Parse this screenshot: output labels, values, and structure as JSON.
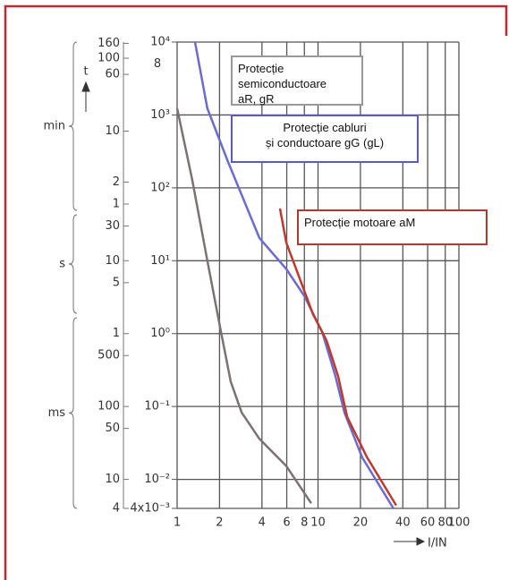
{
  "chart_data": {
    "type": "line",
    "log_x": true,
    "log_y": true,
    "grid": true,
    "x_label": "I/IN",
    "y_label": "t",
    "xlim": [
      1,
      100
    ],
    "xticks": [
      1,
      2,
      4,
      6,
      8,
      10,
      20,
      40,
      60,
      80,
      100
    ],
    "ylim": [
      0.004,
      10000
    ],
    "yticks": [
      {
        "value": 10000,
        "label": "10⁴"
      },
      {
        "value": 1000,
        "label": "10³"
      },
      {
        "value": 100,
        "label": "10²"
      },
      {
        "value": 10,
        "label": "10¹"
      },
      {
        "value": 1,
        "label": "10⁰"
      },
      {
        "value": 0.1,
        "label": "10⁻¹"
      },
      {
        "value": 0.01,
        "label": "10⁻²"
      },
      {
        "value": 0.004,
        "label": "4x10⁻³"
      }
    ],
    "time_ticks": [
      {
        "value": 9600,
        "label": "160"
      },
      {
        "value": 6000,
        "label": "100"
      },
      {
        "value": 3600,
        "label": "60"
      },
      {
        "value": 600,
        "label": "10"
      },
      {
        "value": 120,
        "label": "2"
      },
      {
        "value": 60,
        "label": "1"
      },
      {
        "value": 30,
        "label": "30"
      },
      {
        "value": 10,
        "label": "10"
      },
      {
        "value": 5,
        "label": "5"
      },
      {
        "value": 1,
        "label": "1"
      },
      {
        "value": 0.5,
        "label": "500"
      },
      {
        "value": 0.1,
        "label": "100"
      },
      {
        "value": 0.05,
        "label": "50"
      },
      {
        "value": 0.01,
        "label": "10"
      },
      {
        "value": 0.004,
        "label": "4"
      }
    ],
    "time_units": [
      "min",
      "s",
      "ms"
    ],
    "annotations": [
      {
        "value": 5000,
        "label": "8"
      }
    ],
    "series": [
      {
        "name": "Protecție semiconductoare\naR, gR",
        "color": "#7d7272",
        "x": [
          1,
          1.28,
          1.64,
          1.99,
          2.4,
          2.87,
          3.84,
          5.95,
          8.95
        ],
        "values": [
          1230,
          129,
          10,
          1.4,
          0.22,
          0.083,
          0.036,
          0.0153,
          0.0047
        ]
      },
      {
        "name": "Protecție cabluri\nși conductoare gG (gL)",
        "color": "#6b6bd0",
        "x": [
          1.34,
          1.64,
          2.3,
          3.84,
          5.95,
          7.98,
          10.7,
          13.3,
          15.4,
          20.6,
          34.3
        ],
        "values": [
          10000,
          1230,
          226,
          20.5,
          7.7,
          3.3,
          1.06,
          0.26,
          0.083,
          0.02,
          0.004
        ]
      },
      {
        "name": "Protecție motoare aM",
        "color": "#c0392b",
        "x": [
          5.37,
          5.95,
          7.4,
          9.2,
          11.5,
          13.9,
          16.1,
          22.2,
          35.9
        ],
        "values": [
          52,
          17.8,
          5.76,
          1.86,
          0.8,
          0.26,
          0.072,
          0.0203,
          0.0044
        ]
      }
    ]
  }
}
